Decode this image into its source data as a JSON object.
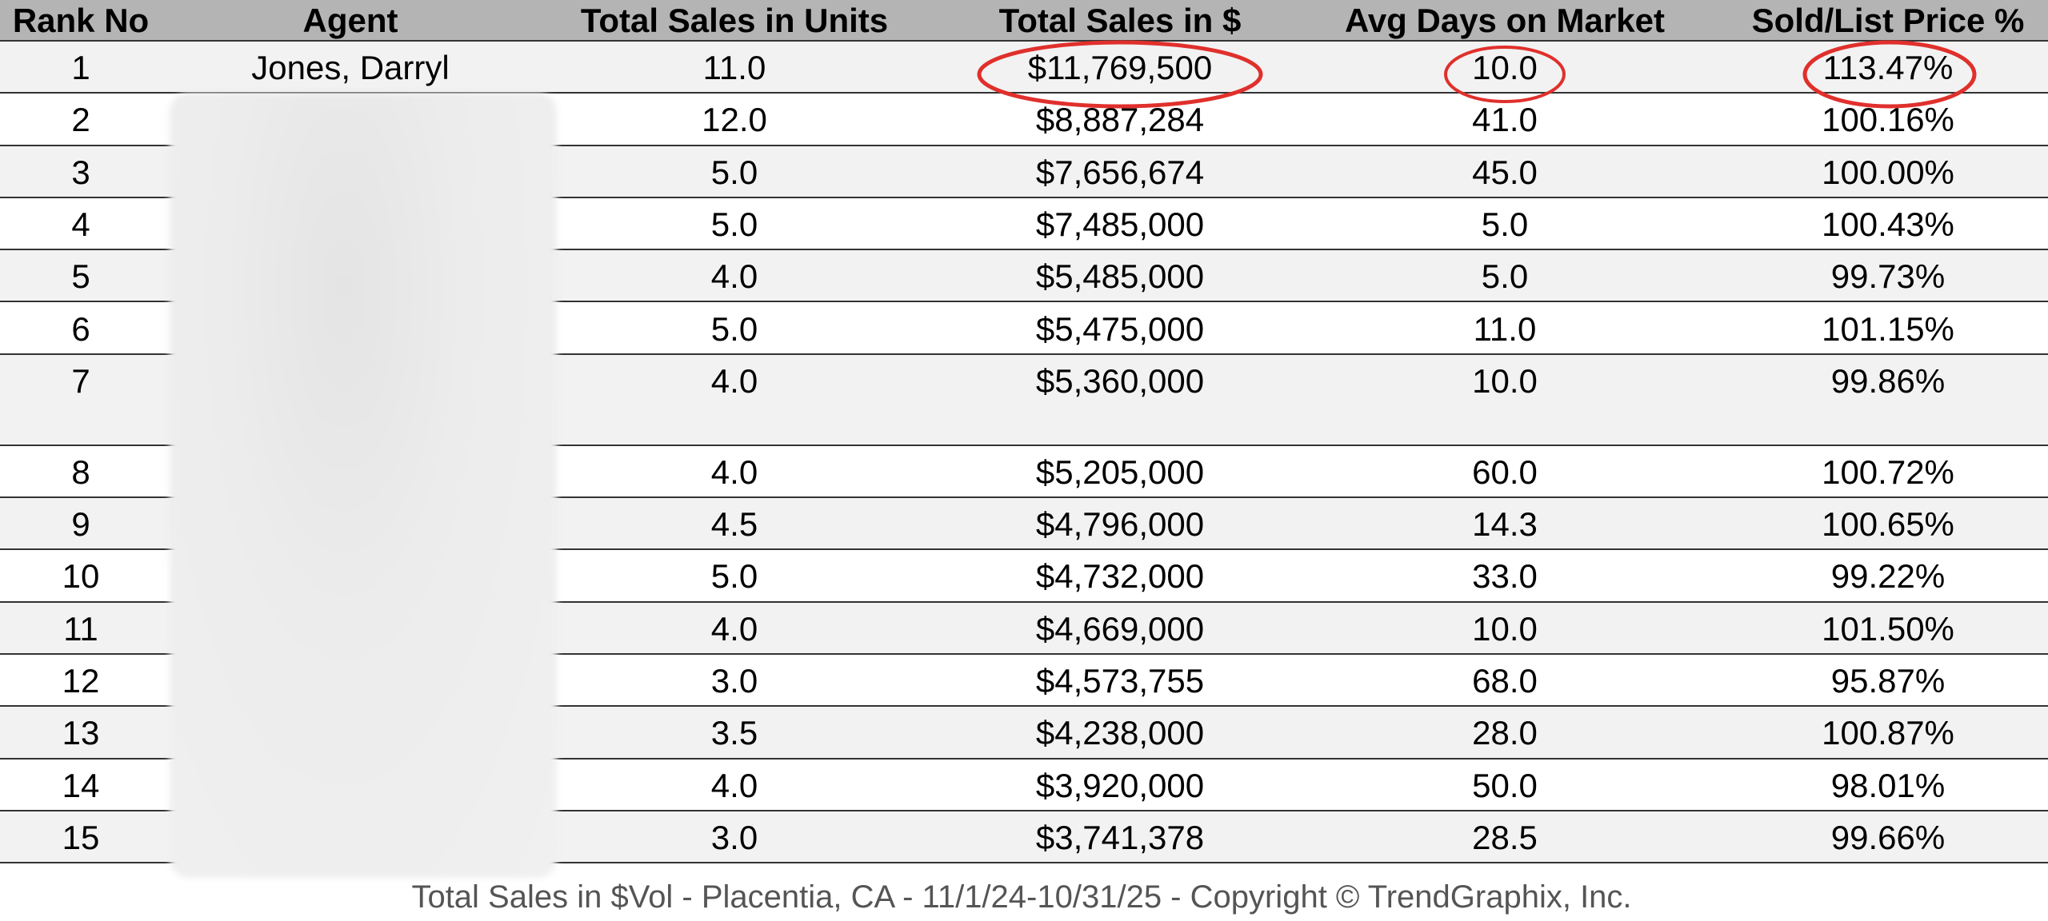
{
  "table": {
    "header": [
      "Rank No",
      "Agent",
      "Total Sales in Units",
      "Total Sales in $",
      "Avg Days on Market",
      "Sold/List Price %"
    ],
    "rows": [
      [
        "1",
        "Jones, Darryl",
        "11.0",
        "$11,769,500",
        "10.0",
        "113.47%"
      ],
      [
        "2",
        null,
        "12.0",
        "$8,887,284",
        "41.0",
        "100.16%"
      ],
      [
        "3",
        null,
        "5.0",
        "$7,656,674",
        "45.0",
        "100.00%"
      ],
      [
        "4",
        null,
        "5.0",
        "$7,485,000",
        "5.0",
        "100.43%"
      ],
      [
        "5",
        null,
        "4.0",
        "$5,485,000",
        "5.0",
        "99.73%"
      ],
      [
        "6",
        null,
        "5.0",
        "$5,475,000",
        "11.0",
        "101.15%"
      ],
      [
        "7",
        null,
        "4.0",
        "$5,360,000",
        "10.0",
        "99.86%"
      ],
      [
        "8",
        null,
        "4.0",
        "$5,205,000",
        "60.0",
        "100.72%"
      ],
      [
        "9",
        null,
        "4.5",
        "$4,796,000",
        "14.3",
        "100.65%"
      ],
      [
        "10",
        null,
        "5.0",
        "$4,732,000",
        "33.0",
        "99.22%"
      ],
      [
        "11",
        null,
        "4.0",
        "$4,669,000",
        "10.0",
        "101.50%"
      ],
      [
        "12",
        null,
        "3.0",
        "$4,573,755",
        "68.0",
        "95.87%"
      ],
      [
        "13",
        null,
        "3.5",
        "$4,238,000",
        "28.0",
        "100.87%"
      ],
      [
        "14",
        null,
        "4.0",
        "$3,920,000",
        "50.0",
        "98.01%"
      ],
      [
        "15",
        null,
        "3.0",
        "$3,741,378",
        "28.5",
        "99.66%"
      ]
    ]
  },
  "footer": "Total Sales in $Vol - Placentia, CA - 11/1/24-10/31/25 - Copyright © TrendGraphix, Inc."
}
